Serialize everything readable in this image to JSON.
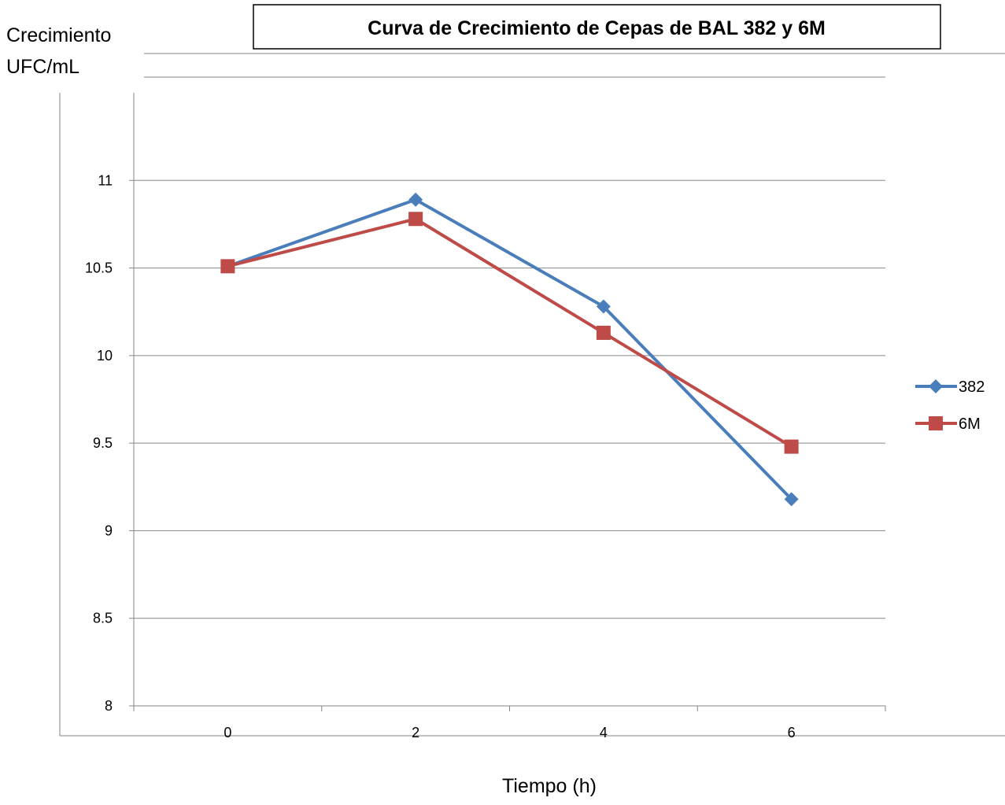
{
  "chart_data": {
    "type": "line",
    "title": "Curva de Crecimiento de Cepas de BAL 382 y 6M",
    "ylabel_lines": [
      "Crecimiento",
      "UFC/mL"
    ],
    "xlabel": "Tiempo (h)",
    "categories": [
      "0",
      "2",
      "4",
      "6"
    ],
    "ylim": [
      8,
      11.5
    ],
    "yticks": [
      8,
      8.5,
      9,
      9.5,
      10,
      10.5,
      11
    ],
    "ytick_labels": [
      "8",
      "8.5",
      "9",
      "9.5",
      "10",
      "10.5",
      "11"
    ],
    "grid": true,
    "legend_position": "right",
    "series": [
      {
        "name": "382",
        "values": [
          10.51,
          10.89,
          10.28,
          9.18
        ],
        "color": "#4a7ebb",
        "marker": "diamond"
      },
      {
        "name": "6M",
        "values": [
          10.51,
          10.78,
          10.13,
          9.48
        ],
        "color": "#be4b48",
        "marker": "square"
      }
    ]
  }
}
